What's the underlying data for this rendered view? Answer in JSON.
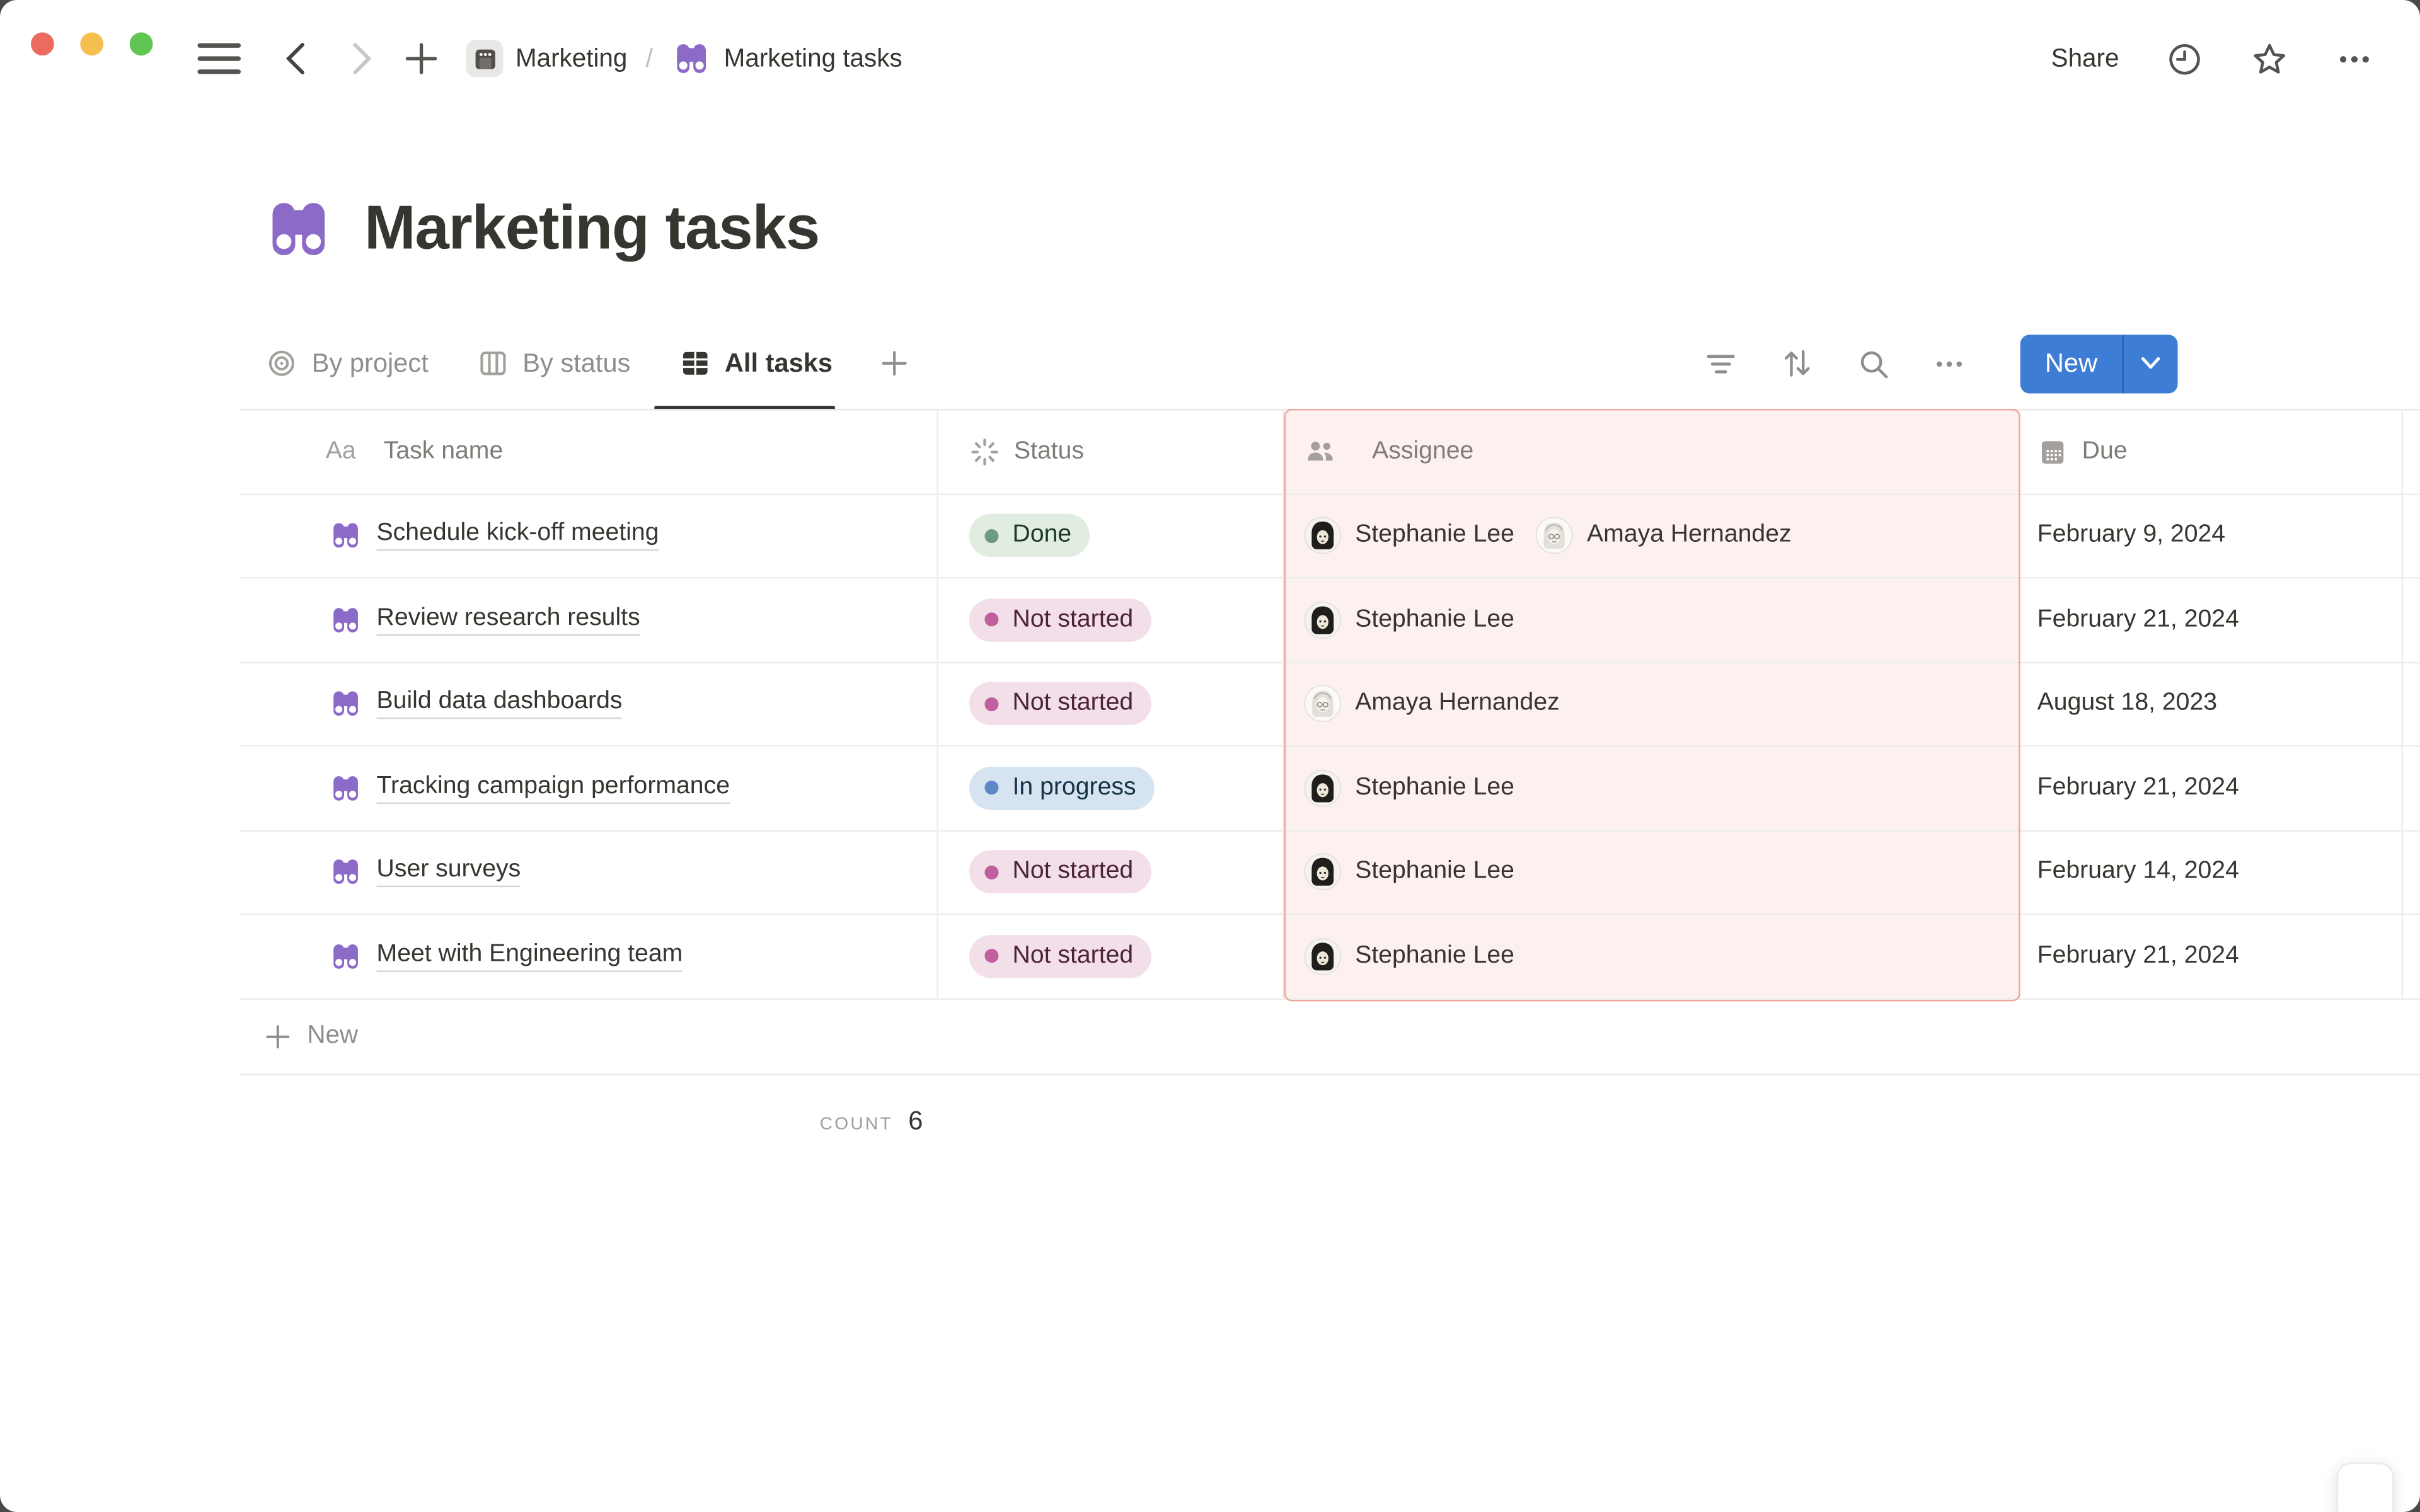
{
  "topbar": {
    "breadcrumb": {
      "root": "Marketing",
      "separator": "/",
      "current": "Marketing tasks"
    },
    "share_label": "Share"
  },
  "page": {
    "icon": "binoculars",
    "title": "Marketing tasks"
  },
  "views": [
    {
      "label": "By project",
      "active": false
    },
    {
      "label": "By status",
      "active": false
    },
    {
      "label": "All tasks",
      "active": true
    }
  ],
  "toolbar": {
    "new_label": "New"
  },
  "table": {
    "columns": [
      {
        "label": "Task name",
        "icon": "Aa"
      },
      {
        "label": "Status",
        "icon": "status-spinner"
      },
      {
        "label": "Assignee",
        "icon": "people",
        "highlighted": true
      },
      {
        "label": "Due",
        "icon": "calendar"
      }
    ],
    "rows": [
      {
        "task": "Schedule kick-off meeting",
        "status": "Done",
        "status_color": "green",
        "assignees": [
          {
            "name": "Stephanie Lee",
            "avatar": "stephanie"
          },
          {
            "name": "Amaya Hernandez",
            "avatar": "amaya"
          }
        ],
        "due": "February 9, 2024"
      },
      {
        "task": "Review research results",
        "status": "Not started",
        "status_color": "pink",
        "assignees": [
          {
            "name": "Stephanie Lee",
            "avatar": "stephanie"
          }
        ],
        "due": "February 21, 2024"
      },
      {
        "task": "Build data dashboards",
        "status": "Not started",
        "status_color": "pink",
        "assignees": [
          {
            "name": "Amaya Hernandez",
            "avatar": "amaya"
          }
        ],
        "due": "August 18, 2023"
      },
      {
        "task": "Tracking campaign performance",
        "status": "In progress",
        "status_color": "blue",
        "assignees": [
          {
            "name": "Stephanie Lee",
            "avatar": "stephanie"
          }
        ],
        "due": "February 21, 2024"
      },
      {
        "task": "User surveys",
        "status": "Not started",
        "status_color": "pink",
        "assignees": [
          {
            "name": "Stephanie Lee",
            "avatar": "stephanie"
          }
        ],
        "due": "February 14, 2024"
      },
      {
        "task": "Meet with Engineering team",
        "status": "Not started",
        "status_color": "pink",
        "assignees": [
          {
            "name": "Stephanie Lee",
            "avatar": "stephanie"
          }
        ],
        "due": "February 21, 2024"
      }
    ],
    "new_row_label": "New",
    "footer": {
      "count_label": "COUNT",
      "count_value": "6"
    }
  },
  "colors": {
    "accent_blue": "#3D7DD6",
    "highlight_border": "#EFA49C",
    "highlight_bg": "#FCF1EF",
    "status": {
      "green": {
        "bg": "#E1EDE0",
        "dot": "#6C9B7D",
        "text": "#1C3829"
      },
      "pink": {
        "bg": "#F2DFE9",
        "dot": "#C0609D",
        "text": "#4C2337"
      },
      "blue": {
        "bg": "#D6E4F1",
        "dot": "#6087C8",
        "text": "#183347"
      }
    }
  }
}
